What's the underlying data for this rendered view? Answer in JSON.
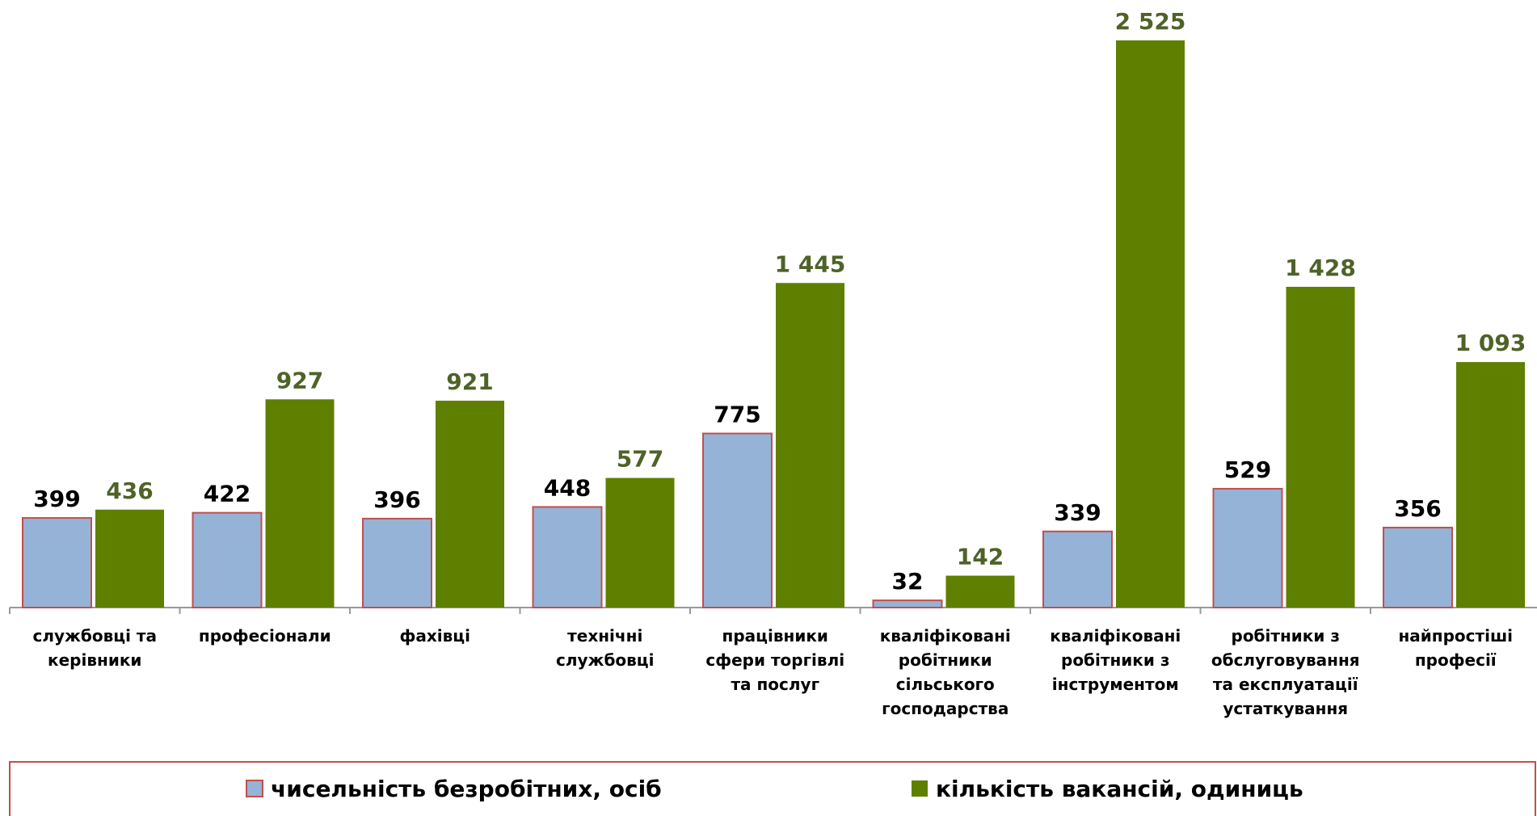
{
  "chart_data": {
    "type": "bar",
    "categories": [
      [
        "службовці та",
        "керівники"
      ],
      [
        "професіонали"
      ],
      [
        "фахівці"
      ],
      [
        "технічні",
        "службовці"
      ],
      [
        "працівники",
        "сфери торгівлі",
        "та послуг"
      ],
      [
        "кваліфіковані",
        "робітники",
        "сільського",
        "господарства"
      ],
      [
        "кваліфіковані",
        "робітники з",
        "інструментом"
      ],
      [
        "робітники з",
        "обслуговування",
        "та експлуатації",
        "устаткування"
      ],
      [
        "найпростіші",
        "професії"
      ]
    ],
    "series": [
      {
        "name": "чисельність безробітних, осіб",
        "color": "#95b3d7",
        "values": [
          399,
          422,
          396,
          448,
          775,
          32,
          339,
          529,
          356
        ]
      },
      {
        "name": "кількість вакансій, одиниць",
        "color": "#5f7f00",
        "values": [
          436,
          927,
          921,
          577,
          1445,
          142,
          2525,
          1428,
          1093
        ],
        "value_labels": [
          "436",
          "927",
          "921",
          "577",
          "1 445",
          "142",
          "2 525",
          "1 428",
          "1 093"
        ]
      }
    ],
    "legend": "bottom"
  }
}
